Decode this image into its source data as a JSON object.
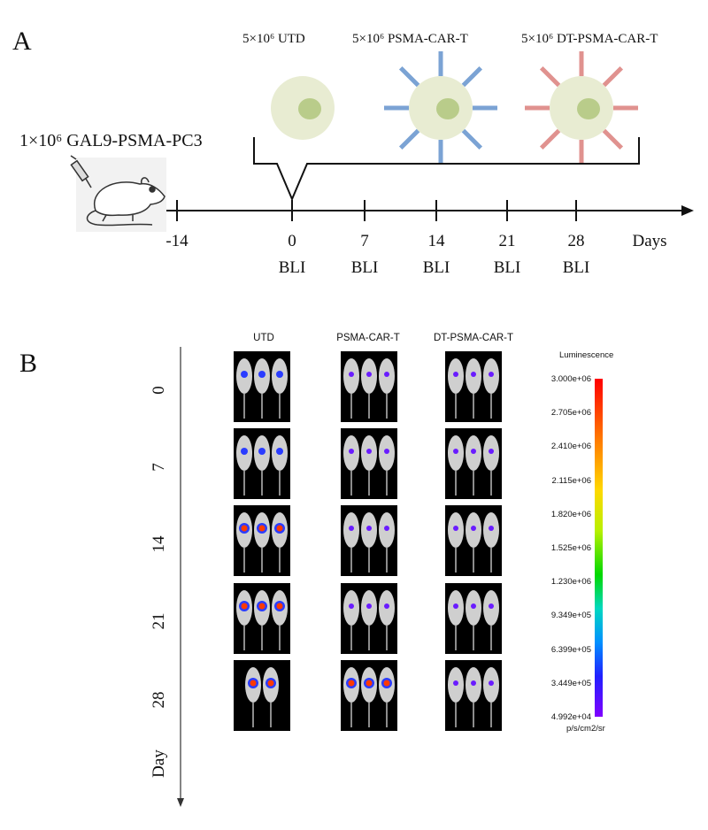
{
  "panel_a": {
    "letter": "A",
    "cells": [
      {
        "label": "5×10⁶ UTD",
        "type": "plain"
      },
      {
        "label": "5×10⁶ PSMA-CAR-T",
        "type": "car",
        "color": "#7ba3d4"
      },
      {
        "label": "5×10⁶ DT-PSMA-CAR-T",
        "type": "car",
        "color": "#e0928f"
      }
    ],
    "tumor_label": "1×10⁶ GAL9-PSMA-PC3",
    "ticks": [
      {
        "day": "-14",
        "bli": ""
      },
      {
        "day": "0",
        "bli": "BLI"
      },
      {
        "day": "7",
        "bli": "BLI"
      },
      {
        "day": "14",
        "bli": "BLI"
      },
      {
        "day": "21",
        "bli": "BLI"
      },
      {
        "day": "28",
        "bli": "BLI"
      }
    ],
    "axis_unit": "Days"
  },
  "panel_b": {
    "letter": "B",
    "groups": [
      "UTD",
      "PSMA-CAR-T",
      "DT-PSMA-CAR-T"
    ],
    "days": [
      "0",
      "7",
      "14",
      "21",
      "28"
    ],
    "axis_title": "Day",
    "scale": {
      "title": "Luminescence",
      "unit": "p/s/cm2/sr",
      "labels": [
        "3.000e+06",
        "2.705e+06",
        "2.410e+06",
        "2.115e+06",
        "1.820e+06",
        "1.525e+06",
        "1.230e+06",
        "9.349e+05",
        "6.399e+05",
        "3.449e+05",
        "4.992e+04"
      ]
    }
  }
}
